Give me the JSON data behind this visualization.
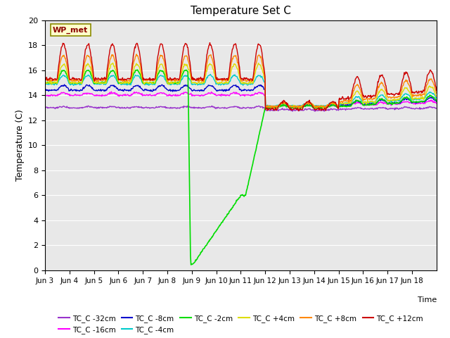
{
  "title": "Temperature Set C",
  "xlabel": "Time",
  "ylabel": "Temperature (C)",
  "ylim": [
    0,
    20
  ],
  "xlim": [
    0,
    16
  ],
  "x_tick_labels": [
    "Jun 3",
    "Jun 4",
    "Jun 5",
    "Jun 6",
    "Jun 7",
    "Jun 8",
    "Jun 9",
    "Jun 10",
    "Jun 11",
    "Jun 12",
    "Jun 13",
    "Jun 14",
    "Jun 15",
    "Jun 16",
    "Jun 17",
    "Jun 18"
  ],
  "annotation_label": "WP_met",
  "bg_color": "#e8e8e8",
  "series_colors": {
    "TC_C -32cm": "#9933cc",
    "TC_C -16cm": "#ff00ff",
    "TC_C -8cm": "#0000cc",
    "TC_C -4cm": "#00cccc",
    "TC_C -2cm": "#00dd00",
    "TC_C +4cm": "#dddd00",
    "TC_C +8cm": "#ff8800",
    "TC_C +12cm": "#cc0000"
  }
}
